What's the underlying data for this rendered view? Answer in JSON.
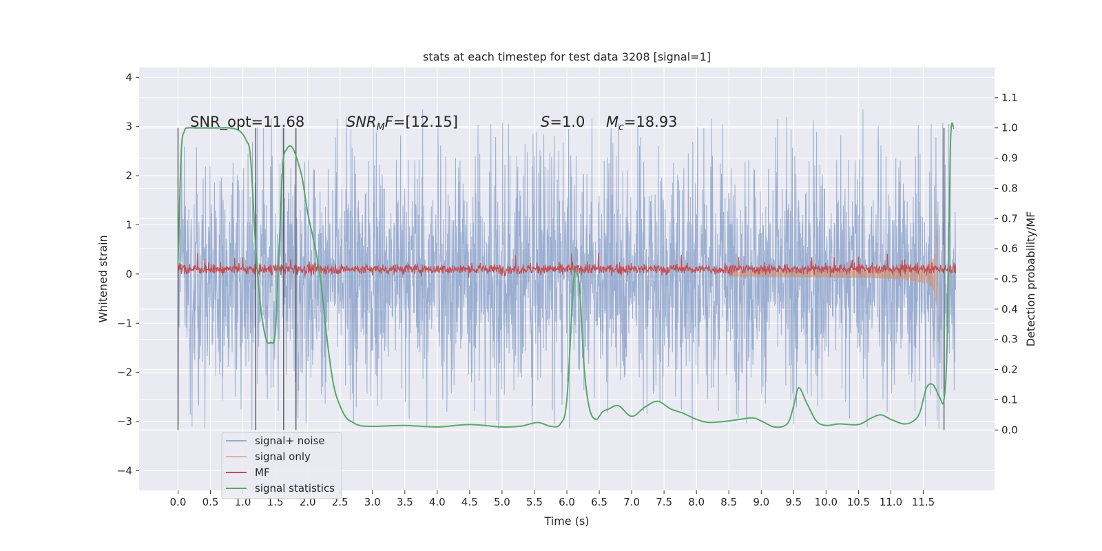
{
  "chart_data": {
    "type": "line",
    "title": "stats at each timestep for test data 3208 [signal=1]",
    "xlabel": "Time (s)",
    "ylabel": "Whitened strain",
    "ylabel_right": "Detection probability/MF",
    "xlim": [
      -0.6,
      12.6
    ],
    "ylim": [
      -4.4,
      4.2
    ],
    "ylim_right": [
      -0.2,
      1.2
    ],
    "x_ticks": [
      "0.0",
      "0.5",
      "1.0",
      "1.5",
      "2.0",
      "2.5",
      "3.0",
      "3.5",
      "4.0",
      "4.5",
      "5.0",
      "5.5",
      "6.0",
      "6.5",
      "7.0",
      "7.5",
      "8.0",
      "8.5",
      "9.0",
      "9.5",
      "10.0",
      "10.5",
      "11.0",
      "11.5"
    ],
    "y_ticks_left": [
      "4",
      "3",
      "2",
      "1",
      "0",
      "−1",
      "−2",
      "−3",
      "−4"
    ],
    "y_ticks_right": [
      "1.1",
      "1.0",
      "0.9",
      "0.8",
      "0.7",
      "0.6",
      "0.5",
      "0.4",
      "0.3",
      "0.2",
      "0.1",
      "0.0"
    ],
    "grid": true,
    "legend_position": "lower-left",
    "annotations": {
      "snr_opt": "SNR_opt=11.68",
      "snr_mf": "=[12.15]",
      "s_val": "=1.0",
      "mc_val": "=18.93"
    },
    "vertical_markers": [
      0.0,
      1.2,
      1.63,
      1.82,
      11.82
    ],
    "series": [
      {
        "name": "signal+ noise",
        "color": "#4c72b0",
        "kind": "noise",
        "amplitude": 2.0,
        "x_range": [
          0.0,
          12.0
        ]
      },
      {
        "name": "signal only",
        "color": "#dd8452",
        "kind": "chirp",
        "merger_time": 11.72
      },
      {
        "name": "MF",
        "color": "#c44e52",
        "kind": "noise",
        "baseline": 0.1,
        "amplitude": 0.12
      },
      {
        "name": "signal statistics",
        "color": "#55a868",
        "axis": "right",
        "x": [
          0.0,
          0.05,
          0.1,
          0.15,
          0.25,
          0.4,
          0.6,
          0.8,
          0.95,
          1.05,
          1.12,
          1.2,
          1.28,
          1.36,
          1.43,
          1.5,
          1.56,
          1.62,
          1.68,
          1.74,
          1.8,
          1.86,
          1.92,
          2.0,
          2.1,
          2.2,
          2.3,
          2.4,
          2.5,
          2.6,
          2.7,
          2.8,
          3.0,
          3.5,
          4.0,
          4.5,
          5.0,
          5.3,
          5.55,
          5.75,
          5.9,
          6.0,
          6.1,
          6.15,
          6.2,
          6.27,
          6.35,
          6.45,
          6.55,
          6.65,
          6.8,
          7.0,
          7.2,
          7.4,
          7.6,
          7.8,
          8.0,
          8.2,
          8.5,
          8.85,
          9.0,
          9.2,
          9.4,
          9.5,
          9.58,
          9.7,
          9.85,
          10.0,
          10.2,
          10.5,
          10.7,
          10.85,
          11.0,
          11.2,
          11.35,
          11.45,
          11.55,
          11.65,
          11.75,
          11.82,
          11.87,
          11.92,
          11.97
        ],
        "y": [
          0.55,
          0.92,
          0.99,
          1.0,
          1.0,
          1.0,
          1.0,
          1.0,
          0.99,
          0.96,
          0.9,
          0.6,
          0.4,
          0.3,
          0.29,
          0.32,
          0.6,
          0.88,
          0.93,
          0.94,
          0.92,
          0.88,
          0.83,
          0.72,
          0.62,
          0.5,
          0.3,
          0.15,
          0.08,
          0.04,
          0.025,
          0.015,
          0.012,
          0.015,
          0.01,
          0.018,
          0.01,
          0.013,
          0.025,
          0.012,
          0.02,
          0.1,
          0.48,
          0.52,
          0.46,
          0.2,
          0.07,
          0.035,
          0.06,
          0.07,
          0.08,
          0.045,
          0.075,
          0.095,
          0.07,
          0.055,
          0.035,
          0.025,
          0.03,
          0.04,
          0.03,
          0.01,
          0.02,
          0.08,
          0.14,
          0.09,
          0.03,
          0.015,
          0.02,
          0.018,
          0.04,
          0.05,
          0.035,
          0.02,
          0.03,
          0.06,
          0.14,
          0.15,
          0.11,
          0.1,
          0.3,
          0.95,
          1.0
        ]
      }
    ]
  }
}
